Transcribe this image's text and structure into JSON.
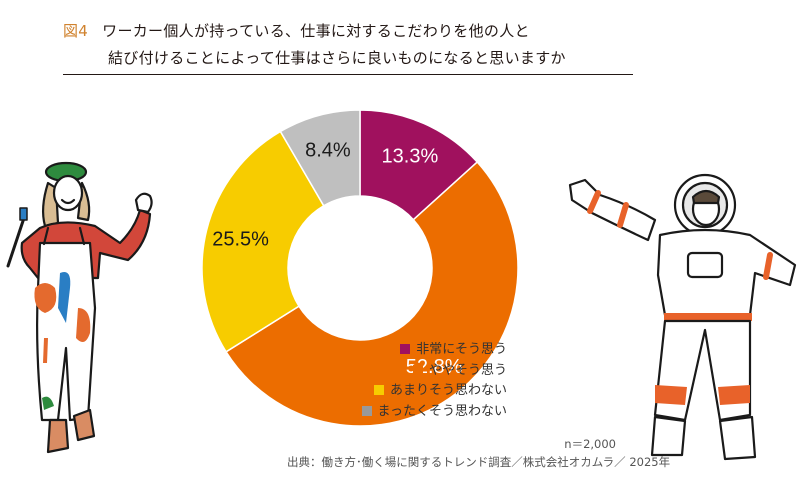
{
  "figure": {
    "label": "図4",
    "title_line1": "ワーカー個人が持っている、仕事に対するこだわりを他の人と",
    "title_line2": "結び付けることによって仕事はさらに良いものになると思いますか"
  },
  "colors": {
    "accent": "#d0822e",
    "strongly_agree": "#a0115e",
    "somewhat_agree": "#ec6d00",
    "not_really": "#f7cc00",
    "not_at_all": "#bfbfbf"
  },
  "chart_data": {
    "type": "pie",
    "subtype": "donut",
    "title": "ワーカー個人が持っている、仕事に対するこだわりを他の人と結び付けることによって仕事はさらに良いものになると思いますか",
    "categories": [
      "非常にそう思う",
      "ややそう思う",
      "あまりそう思わない",
      "まったくそう思わない"
    ],
    "values": [
      13.3,
      52.8,
      25.5,
      8.4
    ],
    "labels": [
      "13.3%",
      "52.8%",
      "25.5%",
      "8.4%"
    ],
    "colors": [
      "#a0115e",
      "#ec6d00",
      "#f7cc00",
      "#bfbfbf"
    ],
    "legend_position": "right-bottom",
    "n": "n＝2,000"
  },
  "legend": {
    "items": [
      {
        "label": "非常にそう思う",
        "color": "#a0115e"
      },
      {
        "label": "ややそう思う",
        "color": "#ec6d00"
      },
      {
        "label": "あまりそう思わない",
        "color": "#f7cc00"
      },
      {
        "label": "まったくそう思わない",
        "color": "#999999"
      }
    ]
  },
  "footer": {
    "sample": "n＝2,000",
    "source": "出典：働き方･働く場に関するトレンド調査／株式会社オカムラ／ 2025年"
  },
  "illustrations": {
    "left": "painter-woman-illustration",
    "right": "astronaut-illustration"
  }
}
